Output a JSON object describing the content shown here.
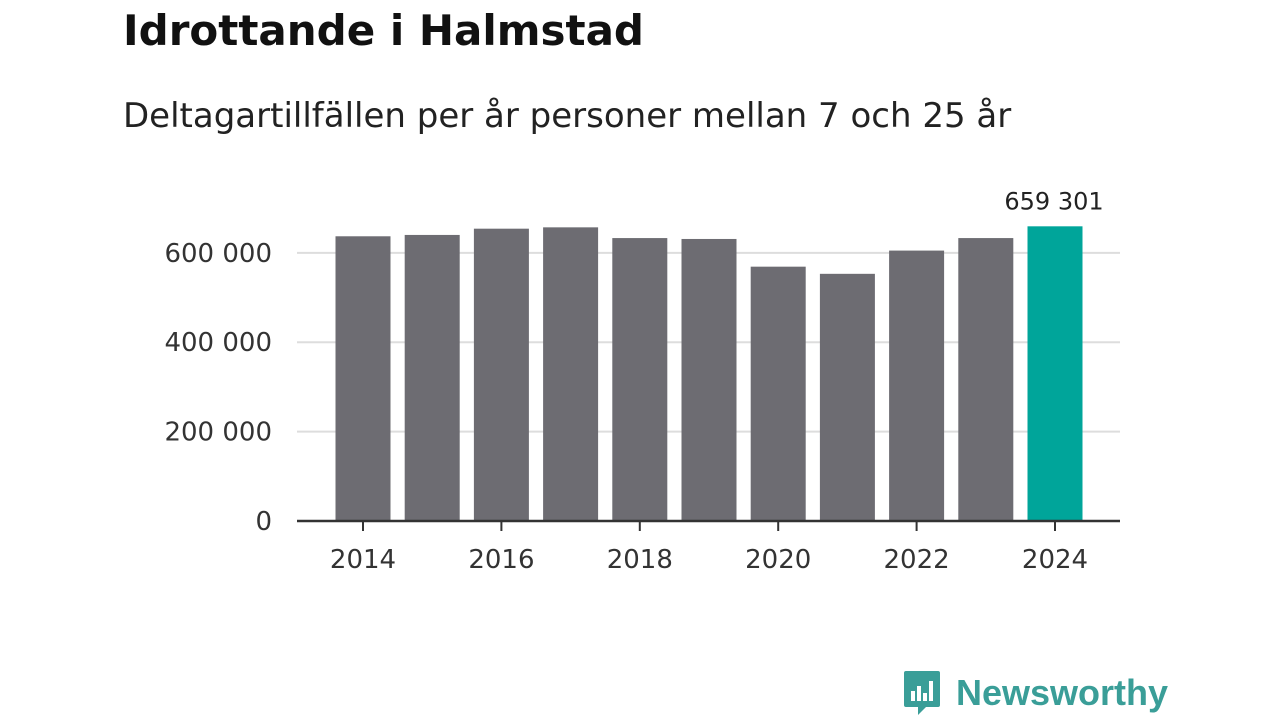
{
  "header": {
    "title": "Idrottande i Halmstad",
    "subtitle": "Deltagartillfällen per år personer mellan 7 och 25 år"
  },
  "brand": {
    "name": "Newsworthy",
    "color": "#3a9e98",
    "icon": "bar-chart-speech-bubble-icon"
  },
  "chart_data": {
    "type": "bar",
    "x": [
      2014,
      2015,
      2016,
      2017,
      2018,
      2019,
      2020,
      2021,
      2022,
      2023,
      2024
    ],
    "values": [
      637000,
      640000,
      654000,
      657000,
      633000,
      631000,
      569000,
      553000,
      605000,
      633000,
      659301
    ],
    "ylim": [
      0,
      660000
    ],
    "yticks": [
      0,
      200000,
      400000,
      600000
    ],
    "ytick_labels": [
      "0",
      "200 000",
      "400 000",
      "600 000"
    ],
    "xticks": [
      2014,
      2016,
      2018,
      2020,
      2022,
      2024
    ],
    "xtick_labels": [
      "2014",
      "2016",
      "2018",
      "2020",
      "2022",
      "2024"
    ],
    "highlight": {
      "x": 2024,
      "label": "659 301"
    },
    "colors": {
      "bar": "#6d6c72",
      "highlight": "#00a59a",
      "grid": "#dddddd",
      "axis": "#333333"
    },
    "grid": true
  }
}
